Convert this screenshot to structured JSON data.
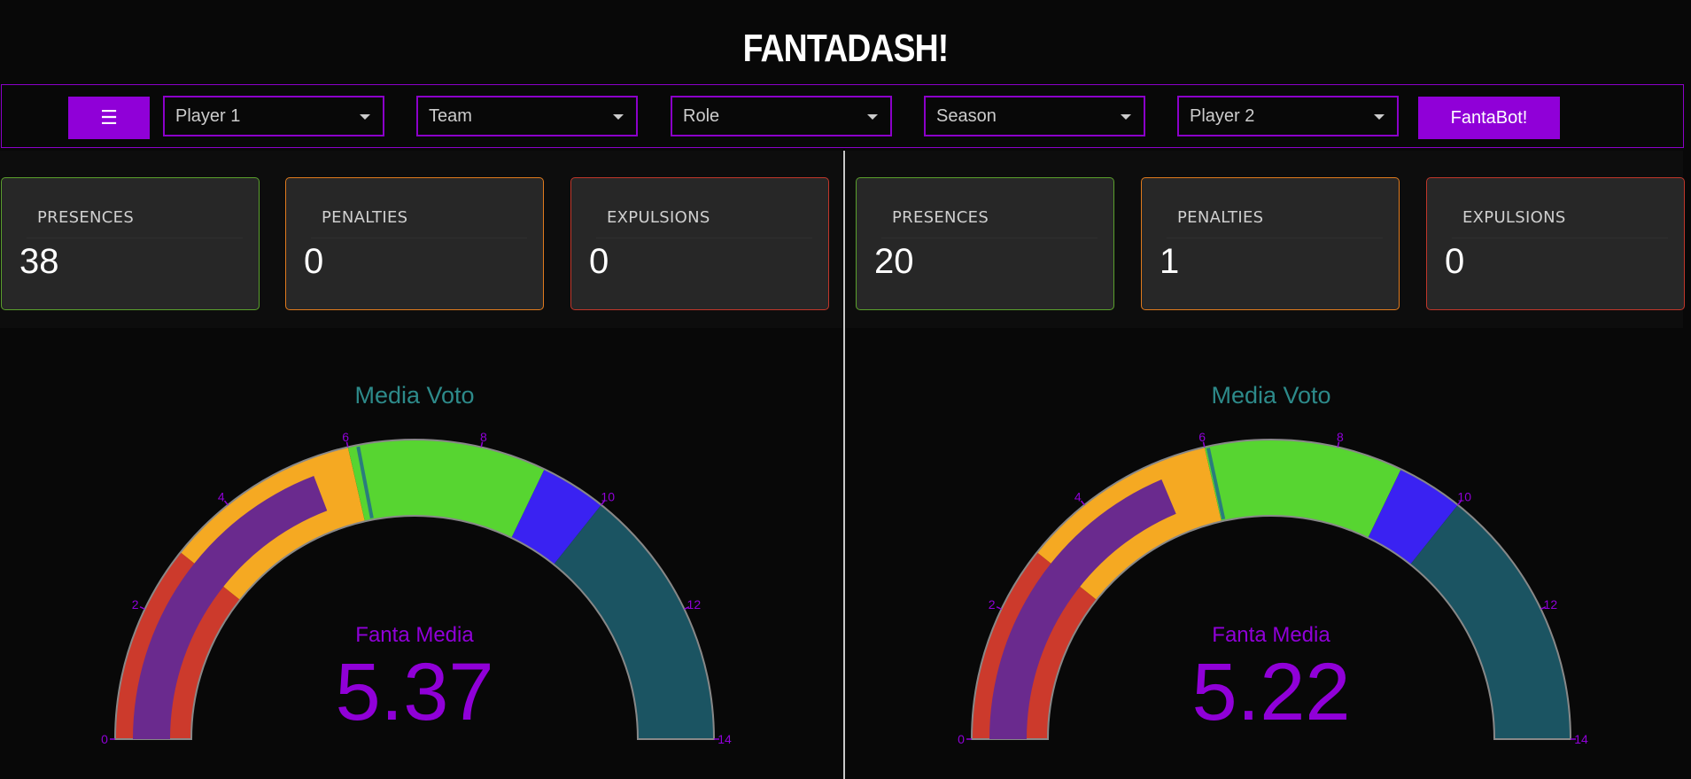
{
  "app": {
    "title": "FANTADASH!"
  },
  "navbar": {
    "menu_icon": "menu-icon",
    "menu_glyph": "☰",
    "dropdowns": [
      {
        "value": "Player 1"
      },
      {
        "value": "Team"
      },
      {
        "value": "Role"
      },
      {
        "value": "Season"
      },
      {
        "value": "Player 2"
      }
    ],
    "bot_label": "FantaBot!"
  },
  "panels": [
    {
      "cards": [
        {
          "label": "PRESENCES",
          "value": "38"
        },
        {
          "label": "PENALTIES",
          "value": "0"
        },
        {
          "label": "EXPULSIONS",
          "value": "0"
        }
      ],
      "gauge": {
        "title": "Media Voto",
        "value_label": "Fanta Media",
        "value": "5.37",
        "fanta_media": 5.37,
        "media_voto": 6.15
      }
    },
    {
      "cards": [
        {
          "label": "PRESENCES",
          "value": "20"
        },
        {
          "label": "PENALTIES",
          "value": "1"
        },
        {
          "label": "EXPULSIONS",
          "value": "0"
        }
      ],
      "gauge": {
        "title": "Media Voto",
        "value_label": "Fanta Media",
        "value": "5.22",
        "fanta_media": 5.22,
        "media_voto": 6.05
      }
    }
  ],
  "gauge_scale": {
    "min": 0,
    "max": 14,
    "ticks": [
      "0",
      "2",
      "4",
      "6",
      "8",
      "10",
      "12",
      "14"
    ],
    "bands": [
      {
        "from": 0,
        "to": 3,
        "color": "#cc3a2c"
      },
      {
        "from": 3,
        "to": 6,
        "color": "#f5a922"
      },
      {
        "from": 6,
        "to": 9,
        "color": "#57d531"
      },
      {
        "from": 9,
        "to": 10,
        "color": "#3a22f2"
      },
      {
        "from": 10,
        "to": 14,
        "color": "#1b5462"
      }
    ]
  },
  "colors": {
    "accent": "#9000d8",
    "presences_border": "#5aa02c",
    "penalties_border": "#e07a1d",
    "expulsions_border": "#c0362a",
    "gauge_title": "#2d8a8a",
    "gauge_value": "#9000d8",
    "bar": "#6a2a8e",
    "threshold": "#2a7d7d"
  }
}
